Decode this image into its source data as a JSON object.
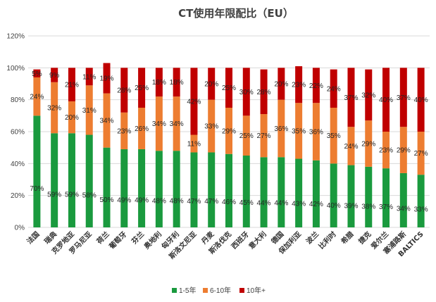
{
  "chart_data": {
    "type": "bar",
    "stacked": true,
    "title": "CT使用年限配比（EU）",
    "xlabel": "",
    "ylabel": "",
    "ylim": [
      0,
      120
    ],
    "yticks": [
      "0%",
      "20%",
      "40%",
      "60%",
      "80%",
      "100%",
      "120%"
    ],
    "grid": true,
    "legend_position": "bottom",
    "categories": [
      "法国",
      "瑞典",
      "克罗地亚",
      "罗马尼亚",
      "荷兰",
      "葡萄牙",
      "芬兰",
      "奥地利",
      "匈牙利",
      "斯洛文尼亚",
      "丹麦",
      "斯洛伐克",
      "西班牙",
      "意大利",
      "德国",
      "保加利亚",
      "波兰",
      "比利时",
      "希腊",
      "捷克",
      "爱尔兰",
      "塞浦路斯",
      "BALTICS"
    ],
    "series": [
      {
        "name": "1-5年",
        "color": "#1a9a3e",
        "values": [
          70,
          59,
          59,
          58,
          50,
          49,
          49,
          48,
          48,
          47,
          47,
          46,
          45,
          44,
          44,
          43,
          42,
          40,
          39,
          38,
          37,
          34,
          33
        ],
        "labels": [
          "70%",
          "59%",
          "59%",
          "58%",
          "50%",
          "49%",
          "49%",
          "48%",
          "48%",
          "47%",
          "47%",
          "46%",
          "45%",
          "44%",
          "44%",
          "43%",
          "42%",
          "40%",
          "39%",
          "38%",
          "37%",
          "34%",
          "33%"
        ]
      },
      {
        "name": "6-10年",
        "color": "#ed7d31",
        "values": [
          24,
          32,
          20,
          31,
          34,
          23,
          26,
          34,
          34,
          11,
          33,
          29,
          25,
          27,
          36,
          35,
          36,
          35,
          24,
          29,
          23,
          29,
          27
        ],
        "labels": [
          "24%",
          "32%",
          "20%",
          "31%",
          "34%",
          "23%",
          "26%",
          "34%",
          "34%",
          "11%",
          "33%",
          "29%",
          "25%",
          "27%",
          "36%",
          "35%",
          "36%",
          "35%",
          "24%",
          "29%",
          "23%",
          "29%",
          "27%"
        ]
      },
      {
        "name": "10年+",
        "color": "#c00000",
        "values": [
          5,
          9,
          21,
          11,
          19,
          28,
          25,
          18,
          18,
          42,
          20,
          25,
          30,
          28,
          20,
          23,
          22,
          24,
          37,
          32,
          40,
          37,
          40
        ],
        "labels": [
          "5%",
          "9%",
          "21%",
          "11%",
          "19%",
          "28%",
          "25%",
          "18%",
          "18%",
          "42%",
          "20%",
          "25%",
          "30%",
          "28%",
          "20%",
          "23%",
          "22%",
          "24%",
          "37%",
          "32%",
          "40%",
          "37%",
          "40%"
        ]
      }
    ]
  }
}
